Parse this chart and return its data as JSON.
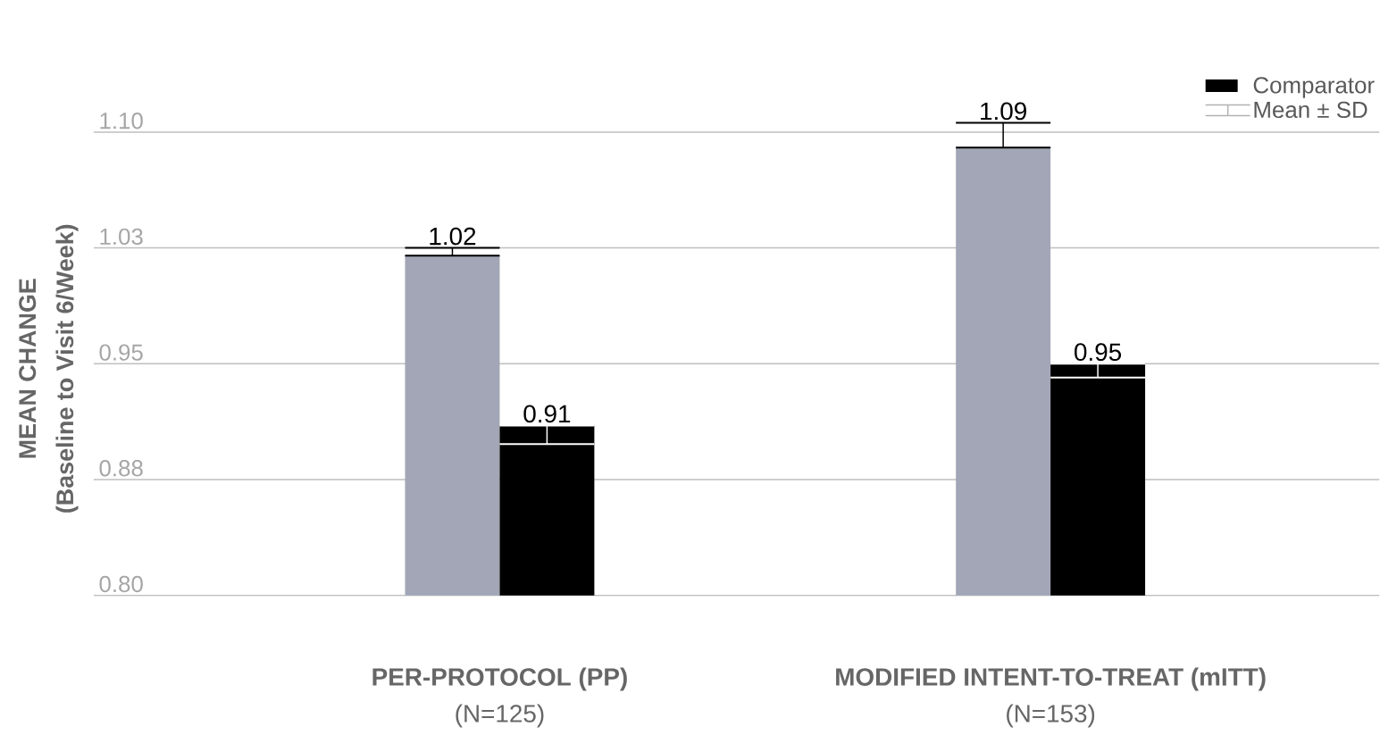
{
  "chart_data": {
    "type": "bar",
    "ylabel": "MEAN CHANGE",
    "annotations": [
      "(N=125)",
      "(N=153)",
      "Mean ± SD",
      "(Baseline to Visit 6/Week)"
    ],
    "categories": [
      "PER-PROTOCOL (PP)",
      "MODIFIED INTENT-TO-TREAT (mITT)"
    ],
    "series": [
      {
        "color": "#a2a6b6",
        "values": [
          1.02,
          1.09
        ],
        "errors": [
          [
            1.02,
            1.025
          ],
          [
            1.09,
            1.106
          ]
        ]
      },
      {
        "name": "Comparator",
        "color": "#000000",
        "values": [
          0.91,
          0.95
        ],
        "errors": [
          [
            0.898,
            0.91
          ],
          [
            0.941,
            0.95
          ]
        ]
      }
    ],
    "data_labels": true,
    "ylim": [
      0.8,
      1.1
    ],
    "yticks": [
      {
        "value": 0.8,
        "label": "0.80"
      },
      {
        "value": 0.875,
        "label": "0.88"
      },
      0.95,
      {
        "value": 1.025,
        "label": "1.03"
      },
      {
        "value": 1.1,
        "label": "1.10"
      }
    ],
    "grid": "y",
    "legend": "top right"
  }
}
